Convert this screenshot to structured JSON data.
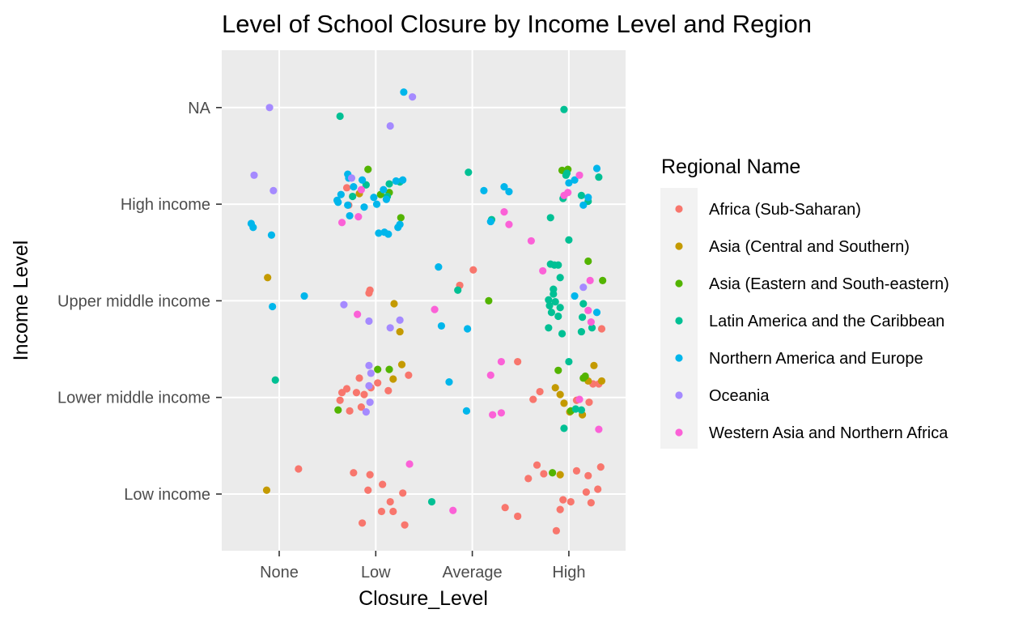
{
  "chart_data": {
    "type": "scatter",
    "title": "Level of School Closure by Income Level and Region",
    "xlabel": "Closure_Level",
    "ylabel": "Income Level",
    "x_categories": [
      "None",
      "Low",
      "Average",
      "High"
    ],
    "y_categories": [
      "Low income",
      "Lower middle income",
      "Upper middle income",
      "High income",
      "NA"
    ],
    "jitter": true,
    "legend": {
      "title": "Regional Name",
      "position": "right",
      "entries": [
        {
          "name": "Africa (Sub-Saharan)",
          "color": "#F8766D"
        },
        {
          "name": "Asia (Central and Southern)",
          "color": "#C49A00"
        },
        {
          "name": "Asia (Eastern and South-eastern)",
          "color": "#53B400"
        },
        {
          "name": "Latin America and the Caribbean",
          "color": "#00C094"
        },
        {
          "name": "Northern America and Europe",
          "color": "#00B6EB"
        },
        {
          "name": "Oceania",
          "color": "#A58AFF"
        },
        {
          "name": "Western Asia and Northern Africa",
          "color": "#FB61D7"
        }
      ]
    },
    "series": [
      {
        "name": "Africa (Sub-Saharan)",
        "points": [
          {
            "x": 0.2,
            "y": 0.26
          },
          {
            "x": 0.77,
            "y": 0.22
          },
          {
            "x": 0.92,
            "y": 0.04
          },
          {
            "x": 0.86,
            "y": -0.3
          },
          {
            "x": 0.94,
            "y": 0.2
          },
          {
            "x": 1.07,
            "y": 0.1
          },
          {
            "x": 1.06,
            "y": -0.18
          },
          {
            "x": 1.18,
            "y": -0.18
          },
          {
            "x": 1.15,
            "y": -0.08
          },
          {
            "x": 1.3,
            "y": -0.32
          },
          {
            "x": 1.28,
            "y": 0.01
          },
          {
            "x": 2.58,
            "y": 0.16
          },
          {
            "x": 2.67,
            "y": 0.3
          },
          {
            "x": 2.94,
            "y": -0.06
          },
          {
            "x": 3.2,
            "y": 0.19
          },
          {
            "x": 3.33,
            "y": 0.28
          },
          {
            "x": 2.47,
            "y": -0.23
          },
          {
            "x": 2.34,
            "y": -0.14
          },
          {
            "x": 2.74,
            "y": 0.21
          },
          {
            "x": 2.87,
            "y": -0.38
          },
          {
            "x": 2.91,
            "y": -0.16
          },
          {
            "x": 3.08,
            "y": 0.24
          },
          {
            "x": 3.18,
            "y": 0.02
          },
          {
            "x": 3.3,
            "y": 0.05
          },
          {
            "x": 3.02,
            "y": -0.08
          },
          {
            "x": 3.23,
            "y": -0.09
          },
          {
            "x": 0.8,
            "y": 1.05
          },
          {
            "x": 0.85,
            "y": 0.9
          },
          {
            "x": 0.88,
            "y": 1.03
          },
          {
            "x": 0.95,
            "y": 1.1
          },
          {
            "x": 0.65,
            "y": 1.05
          },
          {
            "x": 0.7,
            "y": 1.09
          },
          {
            "x": 0.73,
            "y": 0.86
          },
          {
            "x": 1.13,
            "y": 1.07
          },
          {
            "x": 1.02,
            "y": 1.15
          },
          {
            "x": 0.83,
            "y": 1.2
          },
          {
            "x": 1.34,
            "y": 1.23
          },
          {
            "x": 0.93,
            "y": 2.08
          },
          {
            "x": 0.94,
            "y": 2.11
          },
          {
            "x": 2.01,
            "y": 2.32
          },
          {
            "x": 1.87,
            "y": 2.16
          },
          {
            "x": 2.47,
            "y": 1.37
          },
          {
            "x": 3.31,
            "y": 1.14
          },
          {
            "x": 3.25,
            "y": 1.14
          },
          {
            "x": 3.34,
            "y": 1.71
          },
          {
            "x": 3.21,
            "y": 0.95
          },
          {
            "x": 2.63,
            "y": 0.98
          },
          {
            "x": 2.7,
            "y": 1.06
          },
          {
            "x": 0.63,
            "y": 0.97
          },
          {
            "x": 3.08,
            "y": 0.97
          },
          {
            "x": 0.7,
            "y": 3.17
          },
          {
            "x": 0.72,
            "y": 2.99
          }
        ]
      },
      {
        "name": "Asia (Central and Southern)",
        "points": [
          {
            "x": -0.13,
            "y": 0.04
          },
          {
            "x": -0.12,
            "y": 2.24
          },
          {
            "x": 0.83,
            "y": 3.11
          },
          {
            "x": 1.19,
            "y": 1.97
          },
          {
            "x": 1.27,
            "y": 1.34
          },
          {
            "x": 1.18,
            "y": 1.19
          },
          {
            "x": 1.25,
            "y": 1.68
          },
          {
            "x": 2.91,
            "y": 0.2
          },
          {
            "x": 2.86,
            "y": 1.1
          },
          {
            "x": 2.91,
            "y": 1.03
          },
          {
            "x": 3.2,
            "y": 1.17
          },
          {
            "x": 3.14,
            "y": 0.82
          },
          {
            "x": 3.26,
            "y": 1.33
          },
          {
            "x": 3.34,
            "y": 1.17
          },
          {
            "x": 3.01,
            "y": 0.85
          },
          {
            "x": 2.95,
            "y": 0.94
          }
        ]
      },
      {
        "name": "Asia (Eastern and South-eastern)",
        "points": [
          {
            "x": 0.61,
            "y": 0.87
          },
          {
            "x": 0.92,
            "y": 3.36
          },
          {
            "x": 1.02,
            "y": 1.29
          },
          {
            "x": 1.14,
            "y": 1.29
          },
          {
            "x": 1.26,
            "y": 2.86
          },
          {
            "x": 2.17,
            "y": 2.0
          },
          {
            "x": 2.83,
            "y": 0.22
          },
          {
            "x": 2.93,
            "y": 3.35
          },
          {
            "x": 2.99,
            "y": 3.36
          },
          {
            "x": 3.15,
            "y": 1.2
          },
          {
            "x": 3.17,
            "y": 1.22
          },
          {
            "x": 3.02,
            "y": 0.86
          },
          {
            "x": 3.2,
            "y": 2.41
          },
          {
            "x": 3.35,
            "y": 2.21
          },
          {
            "x": 1.05,
            "y": 3.1
          },
          {
            "x": 1.14,
            "y": 3.12
          },
          {
            "x": 2.89,
            "y": 1.28
          }
        ]
      },
      {
        "name": "Latin America and the Caribbean",
        "points": [
          {
            "x": 0.63,
            "y": 3.91
          },
          {
            "x": -0.04,
            "y": 1.18
          },
          {
            "x": 1.85,
            "y": 2.11
          },
          {
            "x": 1.96,
            "y": 3.33
          },
          {
            "x": 2.2,
            "y": 2.84
          },
          {
            "x": 2.81,
            "y": 2.38
          },
          {
            "x": 2.85,
            "y": 2.37
          },
          {
            "x": 2.89,
            "y": 2.37
          },
          {
            "x": 2.79,
            "y": 2.01
          },
          {
            "x": 2.84,
            "y": 2.12
          },
          {
            "x": 2.8,
            "y": 1.95
          },
          {
            "x": 2.86,
            "y": 1.99
          },
          {
            "x": 2.89,
            "y": 1.84
          },
          {
            "x": 2.79,
            "y": 1.72
          },
          {
            "x": 2.82,
            "y": 1.88
          },
          {
            "x": 2.91,
            "y": 1.93
          },
          {
            "x": 2.84,
            "y": 2.07
          },
          {
            "x": 3.14,
            "y": 1.83
          },
          {
            "x": 3.13,
            "y": 1.68
          },
          {
            "x": 3.24,
            "y": 1.72
          },
          {
            "x": 3.15,
            "y": 1.97
          },
          {
            "x": 2.93,
            "y": 1.66
          },
          {
            "x": 2.91,
            "y": 2.24
          },
          {
            "x": 3.0,
            "y": 1.37
          },
          {
            "x": 2.95,
            "y": 0.68
          },
          {
            "x": 3.07,
            "y": 0.88
          },
          {
            "x": 3.13,
            "y": 0.87
          },
          {
            "x": 2.94,
            "y": 3.06
          },
          {
            "x": 2.81,
            "y": 2.86
          },
          {
            "x": 3.31,
            "y": 3.28
          },
          {
            "x": 3.13,
            "y": 3.09
          },
          {
            "x": 2.97,
            "y": 3.3
          },
          {
            "x": 3.0,
            "y": 2.63
          },
          {
            "x": 0.9,
            "y": 3.2
          },
          {
            "x": 1.12,
            "y": 3.08
          },
          {
            "x": 1.14,
            "y": 3.21
          },
          {
            "x": 0.76,
            "y": 3.08
          },
          {
            "x": 1.25,
            "y": 3.23
          },
          {
            "x": 1.58,
            "y": -0.08
          },
          {
            "x": 2.95,
            "y": 3.98
          },
          {
            "x": 2.98,
            "y": 3.32
          },
          {
            "x": 3.2,
            "y": 3.03
          }
        ]
      },
      {
        "name": "Northern America and Europe",
        "points": [
          {
            "x": -0.29,
            "y": 2.8
          },
          {
            "x": -0.27,
            "y": 2.76
          },
          {
            "x": -0.08,
            "y": 2.68
          },
          {
            "x": -0.07,
            "y": 1.94
          },
          {
            "x": 0.26,
            "y": 2.05
          },
          {
            "x": 0.61,
            "y": 3.02
          },
          {
            "x": 0.64,
            "y": 3.1
          },
          {
            "x": 0.71,
            "y": 3.31
          },
          {
            "x": 0.72,
            "y": 3.27
          },
          {
            "x": 0.77,
            "y": 3.18
          },
          {
            "x": 0.86,
            "y": 3.25
          },
          {
            "x": 0.73,
            "y": 2.88
          },
          {
            "x": 1.08,
            "y": 3.15
          },
          {
            "x": 1.09,
            "y": 2.71
          },
          {
            "x": 1.13,
            "y": 2.69
          },
          {
            "x": 1.23,
            "y": 2.76
          },
          {
            "x": 1.25,
            "y": 2.79
          },
          {
            "x": 1.28,
            "y": 3.25
          },
          {
            "x": 1.21,
            "y": 3.24
          },
          {
            "x": 1.29,
            "y": 4.16
          },
          {
            "x": 1.65,
            "y": 2.35
          },
          {
            "x": 1.68,
            "y": 1.74
          },
          {
            "x": 1.76,
            "y": 1.16
          },
          {
            "x": 1.95,
            "y": 1.71
          },
          {
            "x": 1.94,
            "y": 0.86
          },
          {
            "x": 2.12,
            "y": 3.14
          },
          {
            "x": 2.33,
            "y": 3.18
          },
          {
            "x": 2.38,
            "y": 3.13
          },
          {
            "x": 2.19,
            "y": 2.82
          },
          {
            "x": 3.0,
            "y": 3.22
          },
          {
            "x": 3.06,
            "y": 3.25
          },
          {
            "x": 3.15,
            "y": 2.99
          },
          {
            "x": 3.2,
            "y": 3.07
          },
          {
            "x": 3.29,
            "y": 3.37
          },
          {
            "x": 3.06,
            "y": 2.05
          },
          {
            "x": 3.29,
            "y": 1.88
          },
          {
            "x": 1.11,
            "y": 3.05
          },
          {
            "x": 0.98,
            "y": 3.07
          },
          {
            "x": 0.6,
            "y": 3.04
          },
          {
            "x": 0.71,
            "y": 2.99
          },
          {
            "x": 1.01,
            "y": 3.0
          },
          {
            "x": 0.88,
            "y": 2.97
          },
          {
            "x": 1.03,
            "y": 2.7
          }
        ]
      },
      {
        "name": "Oceania",
        "points": [
          {
            "x": -0.1,
            "y": 4.0
          },
          {
            "x": -0.26,
            "y": 3.3
          },
          {
            "x": -0.06,
            "y": 3.14
          },
          {
            "x": 0.67,
            "y": 1.96
          },
          {
            "x": 0.93,
            "y": 1.79
          },
          {
            "x": 0.93,
            "y": 1.33
          },
          {
            "x": 0.95,
            "y": 1.25
          },
          {
            "x": 0.93,
            "y": 1.12
          },
          {
            "x": 0.94,
            "y": 0.95
          },
          {
            "x": 0.9,
            "y": 0.85
          },
          {
            "x": 1.15,
            "y": 1.72
          },
          {
            "x": 1.25,
            "y": 1.8
          },
          {
            "x": 1.15,
            "y": 3.81
          },
          {
            "x": 1.38,
            "y": 4.11
          },
          {
            "x": 0.75,
            "y": 3.27
          },
          {
            "x": 3.15,
            "y": 2.14
          }
        ]
      },
      {
        "name": "Western Asia and Northern Africa",
        "points": [
          {
            "x": 0.81,
            "y": 1.86
          },
          {
            "x": 0.65,
            "y": 2.81
          },
          {
            "x": 0.82,
            "y": 2.87
          },
          {
            "x": 1.35,
            "y": 0.31
          },
          {
            "x": 1.61,
            "y": 1.91
          },
          {
            "x": 1.8,
            "y": -0.17
          },
          {
            "x": 2.21,
            "y": 0.82
          },
          {
            "x": 2.3,
            "y": 0.84
          },
          {
            "x": 2.3,
            "y": 1.37
          },
          {
            "x": 2.19,
            "y": 1.23
          },
          {
            "x": 2.33,
            "y": 2.92
          },
          {
            "x": 2.38,
            "y": 2.79
          },
          {
            "x": 2.61,
            "y": 2.62
          },
          {
            "x": 2.73,
            "y": 2.31
          },
          {
            "x": 2.99,
            "y": 3.12
          },
          {
            "x": 3.22,
            "y": 2.21
          },
          {
            "x": 3.2,
            "y": 1.9
          },
          {
            "x": 3.23,
            "y": 1.78
          },
          {
            "x": 3.11,
            "y": 0.98
          },
          {
            "x": 3.31,
            "y": 0.67
          },
          {
            "x": 2.95,
            "y": 3.09
          },
          {
            "x": 3.11,
            "y": 3.3
          },
          {
            "x": 0.85,
            "y": 3.15
          }
        ]
      }
    ]
  }
}
